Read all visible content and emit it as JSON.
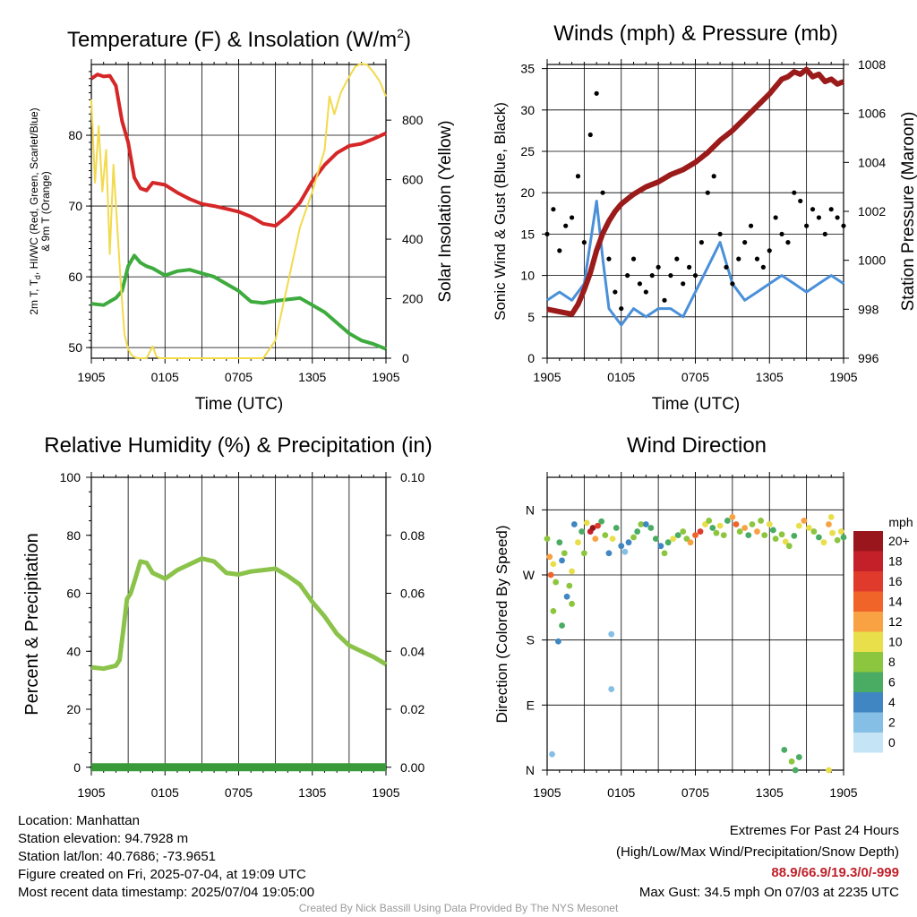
{
  "time_ticks": [
    "1905",
    "0105",
    "0705",
    "1305",
    "1905"
  ],
  "chart_data": [
    {
      "type": "line",
      "title": "Temperature (F) & Insolation (W/m²)",
      "xlabel": "Time (UTC)",
      "ylabel": "2m T, Tₓ, HI/WC (Red, Green, Scarlet/Blue) & 9m T (Orange)",
      "y2label": "Solar Insolation (Yellow)",
      "x_unit": "hours since 2025-07-03 19:05 UTC",
      "ylim": [
        48.5,
        90
      ],
      "y2lim": [
        0,
        987
      ],
      "yticks": [
        50,
        60,
        70,
        80
      ],
      "y2ticks": [
        0,
        200,
        400,
        600,
        800
      ],
      "series": [
        {
          "color": "#d62728",
          "axis": "left",
          "x": [
            0,
            0.5,
            1,
            1.5,
            2.0,
            2.5,
            3.0,
            3.5,
            4.0,
            4.5,
            5,
            6,
            7,
            8,
            9,
            10,
            11,
            12,
            13,
            14,
            15,
            16,
            17,
            18,
            19,
            20,
            21,
            22,
            23,
            24
          ],
          "y": [
            88,
            88.6,
            88.3,
            88.4,
            87.0,
            82.0,
            79.0,
            74.0,
            72.5,
            72.2,
            73.3,
            73.0,
            71.9,
            71.0,
            70.3,
            70.0,
            69.6,
            69.2,
            68.5,
            67.5,
            67.2,
            68.6,
            70.5,
            73.5,
            75.8,
            77.5,
            78.5,
            78.8,
            79.5,
            80.3
          ]
        },
        {
          "color": "#3dab3d",
          "axis": "left",
          "x": [
            0,
            1,
            2,
            2.5,
            3.0,
            3.5,
            4.0,
            4.5,
            5,
            6,
            7,
            8,
            9,
            10,
            11,
            12,
            13,
            14,
            15,
            16,
            17,
            18,
            19,
            20,
            21,
            22,
            23,
            24
          ],
          "y": [
            56.2,
            56.0,
            57.0,
            58.0,
            61.5,
            63.0,
            62.0,
            61.5,
            61.2,
            60.2,
            60.8,
            61.0,
            60.5,
            60.0,
            59.0,
            58.0,
            56.5,
            56.3,
            56.6,
            56.8,
            57.0,
            56.0,
            55.0,
            53.5,
            52.0,
            51.0,
            50.5,
            49.8
          ]
        },
        {
          "color": "#f2da4c",
          "axis": "right",
          "x": [
            0,
            0.3,
            0.6,
            0.9,
            1.2,
            1.5,
            1.8,
            2.1,
            2.4,
            2.7,
            3.0,
            3.3,
            3.6,
            3.9,
            4.2,
            4.5,
            5.0,
            5.3,
            5.6,
            6.0,
            8,
            10,
            12,
            14,
            15,
            16,
            17,
            18,
            19,
            19.4,
            19.8,
            20.3,
            20.8,
            21.5,
            22,
            22.5,
            23,
            23.5,
            24
          ],
          "y": [
            870,
            590,
            780,
            560,
            700,
            350,
            650,
            450,
            250,
            80,
            30,
            10,
            2,
            0,
            0,
            0,
            40,
            5,
            0,
            0,
            0,
            0,
            0,
            0,
            60,
            250,
            440,
            560,
            700,
            880,
            820,
            890,
            930,
            980,
            990,
            985,
            960,
            930,
            880
          ]
        }
      ]
    },
    {
      "type": "line",
      "title": "Winds (mph) & Pressure (mb)",
      "xlabel": "Time (UTC)",
      "ylabel": "Sonic Wind & Gust (Blue, Black)",
      "y2label": "Station Pressure (Maroon)",
      "x_unit": "hours since 2025-07-03 19:05 UTC",
      "ylim": [
        0,
        35.5
      ],
      "y2lim": [
        996,
        1008
      ],
      "yticks": [
        0,
        5,
        10,
        15,
        20,
        25,
        30,
        35
      ],
      "y2ticks": [
        996,
        998,
        1000,
        1002,
        1004,
        1006,
        1008
      ],
      "series": [
        {
          "color": "#4a90d9",
          "axis": "left",
          "x": [
            0,
            1,
            2,
            3,
            3.5,
            4,
            4.5,
            5,
            6,
            7,
            8,
            9,
            10,
            11,
            12,
            13,
            14,
            15,
            16,
            17,
            18,
            19,
            20,
            21,
            22,
            23,
            24
          ],
          "y": [
            7,
            8,
            7,
            9,
            14,
            19,
            12,
            6,
            4,
            6,
            5,
            6,
            6,
            5,
            8,
            11,
            14,
            9,
            7,
            8,
            9,
            10,
            9,
            8,
            9,
            10,
            9
          ]
        },
        {
          "color": "#000000",
          "axis": "left",
          "marker": "dot",
          "x": [
            0,
            0.5,
            1,
            1.5,
            2,
            2.5,
            3,
            3.5,
            4,
            4.5,
            5,
            5.5,
            6,
            6.5,
            7,
            7.5,
            8,
            8.5,
            9,
            9.5,
            10,
            10.5,
            11,
            11.5,
            12,
            12.5,
            13,
            13.5,
            14,
            14.5,
            15,
            15.5,
            16,
            16.5,
            17,
            17.5,
            18,
            18.5,
            19,
            19.5,
            20,
            20.5,
            21,
            21.5,
            22,
            22.5,
            23,
            23.5,
            24
          ],
          "y": [
            15,
            18,
            13,
            16,
            17,
            22,
            14,
            27,
            32,
            20,
            12,
            8,
            6,
            10,
            12,
            9,
            8,
            10,
            11,
            7,
            10,
            12,
            9,
            11,
            10,
            14,
            20,
            22,
            15,
            11,
            9,
            12,
            14,
            16,
            12,
            11,
            13,
            17,
            15,
            14,
            20,
            19,
            16,
            18,
            17,
            15,
            18,
            17,
            16
          ]
        },
        {
          "color": "#9b1b1b",
          "axis": "right",
          "x": [
            0,
            1,
            2,
            2.5,
            3,
            3.5,
            4,
            4.5,
            5,
            5.5,
            6,
            6.5,
            7,
            8,
            9,
            10,
            11,
            12,
            13,
            14,
            15,
            16,
            17,
            18,
            19,
            19.5,
            20,
            20.5,
            21,
            21.5,
            22,
            22.5,
            23,
            23.5,
            24
          ],
          "y": [
            998.0,
            997.9,
            997.8,
            998.2,
            998.8,
            999.5,
            1000.4,
            1001.1,
            1001.6,
            1002.0,
            1002.3,
            1002.5,
            1002.7,
            1003.0,
            1003.2,
            1003.5,
            1003.7,
            1004.0,
            1004.4,
            1004.9,
            1005.3,
            1005.8,
            1006.3,
            1006.8,
            1007.4,
            1007.5,
            1007.7,
            1007.6,
            1007.8,
            1007.5,
            1007.6,
            1007.3,
            1007.4,
            1007.2,
            1007.3
          ]
        }
      ]
    },
    {
      "type": "line",
      "title": "Relative Humidity (%) & Precipitation (in)",
      "xlabel": "",
      "ylabel": "Percent & Precipitation",
      "x_unit": "hours since 2025-07-03 19:05 UTC",
      "ylim": [
        -1,
        100
      ],
      "y2lim": [
        -0.001,
        0.1
      ],
      "yticks": [
        0,
        20,
        40,
        60,
        80,
        100
      ],
      "y2ticks": [
        "0.00",
        "0.02",
        "0.04",
        "0.06",
        "0.08",
        "0.10"
      ],
      "series": [
        {
          "color": "#8bc34a",
          "axis": "left",
          "x": [
            0,
            1,
            2,
            2.3,
            2.6,
            2.9,
            3.2,
            3.5,
            4,
            4.5,
            5,
            6,
            7,
            8,
            9,
            10,
            11,
            12,
            13,
            14,
            15,
            16,
            17,
            18,
            19,
            20,
            21,
            22,
            23,
            24
          ],
          "y": [
            34.5,
            34.0,
            35.0,
            37.0,
            47.0,
            58.0,
            60.0,
            64.0,
            71.0,
            70.5,
            67.0,
            65.0,
            68.0,
            70.0,
            72.0,
            71.0,
            67.0,
            66.5,
            67.5,
            68.0,
            68.5,
            66.0,
            63.0,
            57.0,
            52.0,
            46.0,
            42.0,
            40.0,
            38.0,
            35.5
          ]
        },
        {
          "color": "#3a9a3a",
          "axis": "right",
          "x": [
            0,
            24
          ],
          "y": [
            0.0,
            0.0
          ]
        }
      ]
    },
    {
      "type": "scatter",
      "title": "Wind Direction",
      "ylabel": "Direction (Colored By Speed)",
      "x_unit": "hours since 2025-07-03 19:05 UTC",
      "ylim": [
        0,
        405
      ],
      "yticks": [
        "N",
        "E",
        "S",
        "W",
        "N"
      ],
      "colorbar": {
        "label": "mph",
        "levels": [
          "20+",
          "18",
          "16",
          "14",
          "12",
          "10",
          "8",
          "6",
          "4",
          "2",
          "0"
        ],
        "colors": [
          "#99171c",
          "#c4202a",
          "#e03a2c",
          "#f0642a",
          "#f8a244",
          "#e8df4a",
          "#8cc63e",
          "#4aab63",
          "#3f86c2",
          "#85bfe5",
          "#c5e5f7"
        ]
      },
      "points": [
        [
          0.0,
          320,
          8
        ],
        [
          0.2,
          295,
          12
        ],
        [
          0.3,
          270,
          14
        ],
        [
          0.5,
          285,
          10
        ],
        [
          0.7,
          260,
          8
        ],
        [
          1.0,
          315,
          6
        ],
        [
          1.2,
          290,
          4
        ],
        [
          1.4,
          300,
          8
        ],
        [
          1.6,
          240,
          5
        ],
        [
          1.8,
          255,
          8
        ],
        [
          2.0,
          275,
          10
        ],
        [
          2.2,
          340,
          4
        ],
        [
          2.5,
          315,
          10
        ],
        [
          2.8,
          330,
          6
        ],
        [
          3.0,
          300,
          8
        ],
        [
          3.2,
          342,
          10
        ],
        [
          3.5,
          330,
          18
        ],
        [
          3.7,
          335,
          20
        ],
        [
          3.9,
          320,
          12
        ],
        [
          4.1,
          338,
          16
        ],
        [
          4.4,
          344,
          6
        ],
        [
          4.7,
          325,
          8
        ],
        [
          5.0,
          300,
          4
        ],
        [
          5.3,
          320,
          10
        ],
        [
          5.6,
          335,
          6
        ],
        [
          6.0,
          310,
          4
        ],
        [
          6.3,
          302,
          2
        ],
        [
          6.6,
          315,
          4
        ],
        [
          7.0,
          322,
          8
        ],
        [
          7.3,
          330,
          6
        ],
        [
          7.6,
          340,
          8
        ],
        [
          8.0,
          340,
          4
        ],
        [
          8.4,
          335,
          6
        ],
        [
          8.8,
          320,
          6
        ],
        [
          9.2,
          310,
          4
        ],
        [
          9.5,
          300,
          8
        ],
        [
          9.8,
          315,
          6
        ],
        [
          10.2,
          320,
          10
        ],
        [
          10.6,
          325,
          6
        ],
        [
          11.0,
          330,
          8
        ],
        [
          11.3,
          320,
          8
        ],
        [
          11.6,
          315,
          12
        ],
        [
          12.0,
          325,
          14
        ],
        [
          12.4,
          330,
          16
        ],
        [
          12.8,
          340,
          10
        ],
        [
          13.1,
          345,
          8
        ],
        [
          13.4,
          335,
          6
        ],
        [
          13.7,
          328,
          8
        ],
        [
          14.0,
          338,
          10
        ],
        [
          14.3,
          325,
          8
        ],
        [
          14.6,
          345,
          6
        ],
        [
          15.0,
          350,
          12
        ],
        [
          15.3,
          340,
          14
        ],
        [
          15.6,
          330,
          8
        ],
        [
          16.0,
          335,
          12
        ],
        [
          16.3,
          325,
          6
        ],
        [
          16.6,
          340,
          8
        ],
        [
          17.0,
          330,
          12
        ],
        [
          17.3,
          345,
          8
        ],
        [
          17.6,
          325,
          8
        ],
        [
          18.0,
          340,
          10
        ],
        [
          18.3,
          332,
          6
        ],
        [
          18.5,
          320,
          8
        ],
        [
          19.0,
          326,
          8
        ],
        [
          19.3,
          316,
          10
        ],
        [
          19.6,
          310,
          8
        ],
        [
          20.0,
          324,
          6
        ],
        [
          20.4,
          338,
          10
        ],
        [
          20.8,
          345,
          12
        ],
        [
          21.2,
          335,
          10
        ],
        [
          21.6,
          330,
          8
        ],
        [
          22.0,
          322,
          6
        ],
        [
          22.4,
          315,
          10
        ],
        [
          22.8,
          340,
          12
        ],
        [
          23.1,
          328,
          10
        ],
        [
          23.5,
          318,
          8
        ],
        [
          23.8,
          330,
          10
        ],
        [
          24.0,
          322,
          6
        ],
        [
          0.5,
          220,
          8
        ],
        [
          1.2,
          200,
          6
        ],
        [
          2.0,
          230,
          8
        ],
        [
          0.9,
          178,
          4
        ],
        [
          5.2,
          188,
          2
        ],
        [
          5.2,
          112,
          2
        ],
        [
          0.4,
          22,
          2
        ],
        [
          19.2,
          28,
          6
        ],
        [
          19.8,
          12,
          8
        ],
        [
          20.1,
          0,
          6
        ],
        [
          20.4,
          18,
          6
        ],
        [
          22.8,
          0,
          10
        ],
        [
          23.0,
          350,
          10
        ]
      ]
    }
  ],
  "plots": {
    "temp_title_main": "Temperature (F) & Insolation (W/m",
    "temp_title_sup": "2",
    "temp_title_end": ")",
    "temp_ylabel_line1": "2m T, T",
    "temp_ylabel_sub": "d",
    "temp_ylabel_line1_rest": ", HI/WC (Red, Green, Scarlet/Blue)",
    "temp_ylabel_line2": "& 9m T (Orange)"
  },
  "info": {
    "location": "Location: Manhattan",
    "elevation": "Station elevation: 94.7928 m",
    "latlon": "Station lat/lon: 40.7686; -73.9651",
    "created": "Figure created on Fri, 2025-07-04, at 19:09 UTC",
    "recent": "Most recent data timestamp: 2025/07/04 19:05:00"
  },
  "extremes": {
    "heading": "Extremes For Past 24 Hours",
    "subheading": "(High/Low/Max Wind/Precipitation/Snow Depth)",
    "values": "88.9/66.9/19.3/0/-999",
    "values_color": "#c0202a",
    "gust": "Max Gust: 34.5 mph On 07/03 at 2235 UTC"
  },
  "credit": "Created By Nick Bassill Using Data Provided By The NYS Mesonet"
}
